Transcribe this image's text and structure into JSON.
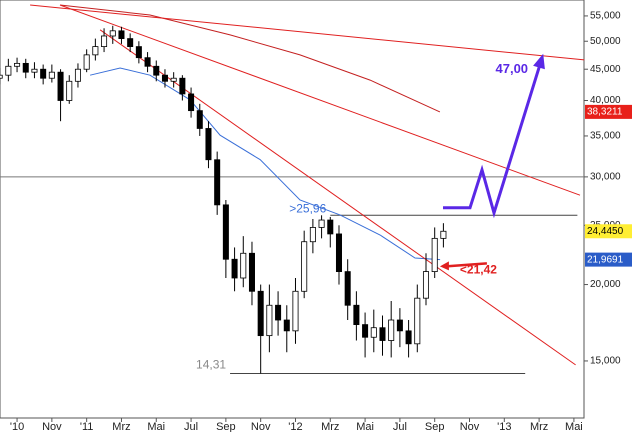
{
  "chart_data": {
    "type": "candlestick",
    "log_scale": true,
    "xlim": [
      -0.98,
      32.58
    ],
    "ylim": [
      12100,
      58400
    ],
    "yticks": [
      {
        "value": 15000,
        "label": "15,000"
      },
      {
        "value": 20000,
        "label": "20,000"
      },
      {
        "value": 25000,
        "label": "25,000"
      },
      {
        "value": 30000,
        "label": "30,000"
      },
      {
        "value": 35000,
        "label": "35,000"
      },
      {
        "value": 40000,
        "label": "40,000"
      },
      {
        "value": 45000,
        "label": "45,000"
      },
      {
        "value": 50000,
        "label": "50,000"
      },
      {
        "value": 55000,
        "label": "55,000"
      }
    ],
    "xticks": [
      {
        "value": 0,
        "label": "'10"
      },
      {
        "value": 2,
        "label": "Nov"
      },
      {
        "value": 4,
        "label": "'11"
      },
      {
        "value": 6,
        "label": "Mrz"
      },
      {
        "value": 8,
        "label": "Mai"
      },
      {
        "value": 10,
        "label": "Jul"
      },
      {
        "value": 12,
        "label": "Sep"
      },
      {
        "value": 14,
        "label": "Nov"
      },
      {
        "value": 16,
        "label": "'12"
      },
      {
        "value": 18,
        "label": "Mrz"
      },
      {
        "value": 20,
        "label": "Mai"
      },
      {
        "value": 22,
        "label": "Jul"
      },
      {
        "value": 24,
        "label": "Sep"
      },
      {
        "value": 26,
        "label": "Nov"
      },
      {
        "value": 28,
        "label": "'13"
      },
      {
        "value": 30,
        "label": "Mrz"
      },
      {
        "value": 32,
        "label": "Mai"
      }
    ],
    "up_color": "#ffffff",
    "down_color": "#000000",
    "x": [
      -1,
      -0.5,
      0,
      0.5,
      1,
      1.5,
      2,
      2.5,
      3,
      3.5,
      4,
      4.5,
      5,
      5.5,
      6,
      6.5,
      7,
      7.5,
      8,
      8.5,
      9,
      9.5,
      10,
      10.5,
      11,
      11.5,
      12,
      12.5,
      13,
      13.5,
      14,
      14.5,
      15,
      15.5,
      16,
      16.5,
      17,
      17.5,
      18,
      18.5,
      19,
      19.5,
      20,
      20.5,
      21,
      21.5,
      22,
      22.5,
      23,
      23.5,
      24,
      24.5
    ],
    "open": [
      43500,
      44000,
      45500,
      46000,
      44500,
      45000,
      43500,
      44500,
      40000,
      43000,
      45000,
      47500,
      49000,
      51000,
      52000,
      50500,
      49000,
      47000,
      45500,
      44000,
      43000,
      43500,
      41000,
      38500,
      36000,
      32000,
      27000,
      22000,
      20500,
      22500,
      19500,
      16500,
      18500,
      17500,
      16800,
      19500,
      23500,
      24800,
      25500,
      24200,
      21000,
      18500,
      17200,
      16400,
      17000,
      16200,
      17500,
      16800,
      16000,
      19000,
      21000,
      23800
    ],
    "high": [
      45200,
      46800,
      47000,
      46800,
      46200,
      45800,
      45800,
      45000,
      44000,
      46000,
      48500,
      50500,
      52500,
      53000,
      52800,
      51500,
      50000,
      48000,
      46500,
      45000,
      44500,
      44000,
      42000,
      39500,
      37000,
      33000,
      27500,
      23000,
      24000,
      23500,
      20000,
      20000,
      19500,
      18500,
      20500,
      24500,
      25600,
      25960,
      25800,
      25000,
      22000,
      19500,
      18000,
      18200,
      17800,
      18800,
      18300,
      17500,
      20000,
      22500,
      24800,
      25200
    ],
    "low": [
      42500,
      43000,
      44500,
      43500,
      43500,
      42500,
      42800,
      37000,
      39500,
      42000,
      44500,
      46500,
      48000,
      49500,
      49500,
      48000,
      46000,
      44500,
      43000,
      42000,
      42000,
      40000,
      37500,
      35000,
      31000,
      26000,
      20500,
      19500,
      19800,
      18500,
      14310,
      15500,
      16500,
      15500,
      16000,
      19000,
      22500,
      23800,
      23000,
      20000,
      17500,
      16200,
      15200,
      15500,
      15300,
      15200,
      15800,
      15200,
      15500,
      18500,
      20500,
      23000
    ],
    "close": [
      44000,
      45500,
      46000,
      44500,
      45000,
      43500,
      44500,
      40000,
      43000,
      45000,
      47500,
      49000,
      51000,
      52000,
      50500,
      49000,
      47000,
      45500,
      44000,
      43000,
      43500,
      41000,
      38500,
      36000,
      32000,
      27000,
      22000,
      20500,
      22500,
      19500,
      16500,
      18500,
      17500,
      16800,
      19500,
      23500,
      24800,
      25500,
      24200,
      21000,
      18500,
      17200,
      16400,
      17000,
      16200,
      17500,
      16800,
      16000,
      19000,
      21000,
      23800,
      24445
    ],
    "lines": [
      {
        "color": "#c42020",
        "x": [
          2.47,
          7.64,
          12.24,
          16.26,
          20.29,
          24.3
        ],
        "values": [
          57300,
          55200,
          51200,
          47500,
          43200,
          38321.1
        ]
      },
      {
        "color": "#3a6fd8",
        "x": [
          4.2,
          5.92,
          7.64,
          9.94,
          11.67,
          13.97,
          16.26,
          18.56,
          20.86,
          22.87,
          24.31
        ],
        "values": [
          44000,
          45200,
          44000,
          40100,
          35100,
          32000,
          27500,
          26000,
          24100,
          22100,
          21969.1
        ]
      },
      {
        "color": "#e02020",
        "x": [
          0.75,
          32.6
        ],
        "values": [
          57300,
          46600
        ]
      },
      {
        "color": "#e02020",
        "x": [
          2.47,
          32.35
        ],
        "values": [
          57300,
          28000
        ]
      },
      {
        "color": "#e02020",
        "x": [
          4.77,
          32.1
        ],
        "values": [
          52200,
          14780
        ]
      }
    ],
    "hlines": [
      {
        "value": 30000,
        "color": "#777777"
      }
    ],
    "levels": [
      {
        "label": ">25,96",
        "value": 25960,
        "x": [
          18.0,
          32.2
        ],
        "color": "#3a6fd8"
      },
      {
        "label": "14,31",
        "value": 14310,
        "x": [
          12.24,
          29.2
        ],
        "color": "#888888"
      }
    ],
    "projection": {
      "label": "47,00",
      "color": "#5a28e6",
      "x": [
        24.48,
        26.03,
        26.72,
        27.41,
        30.17
      ],
      "values": [
        26700,
        26700,
        30800,
        26200,
        47000
      ]
    },
    "marker": {
      "label": "<21,42",
      "value": 21420,
      "x": [
        24.3,
        27.0
      ],
      "color": "#e02020"
    },
    "value_boxes": [
      {
        "label": "38,3211",
        "value": 38321.1,
        "bg": "#e8201a",
        "fg": "#ffffff"
      },
      {
        "label": "24,4450",
        "value": 24445,
        "bg": "#ffee33",
        "fg": "#000000"
      },
      {
        "label": "21,9691",
        "value": 21969.1,
        "bg": "#2a5cc8",
        "fg": "#ffffff"
      }
    ]
  }
}
